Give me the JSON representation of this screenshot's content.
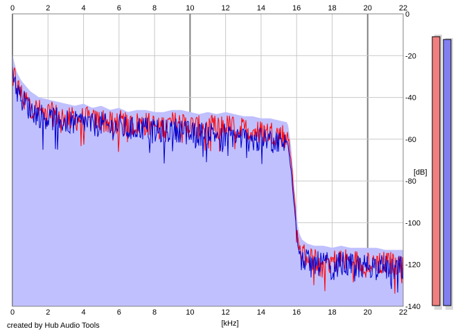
{
  "app": {
    "credit": "created by Hub Audio Tools"
  },
  "colors": {
    "fill": "#c0c0ff",
    "left_channel": "#ff0000",
    "right_channel": "#0000cc",
    "grid_minor": "#c8c8c8",
    "grid_major": "#808080",
    "meter_left": "#f08080",
    "meter_right": "#8080f0"
  },
  "chart_data": {
    "type": "line",
    "title": "",
    "xlabel": "[kHz]",
    "ylabel": "[dB]",
    "xlim": [
      0,
      22
    ],
    "ylim": [
      -140,
      0
    ],
    "x_ticks": [
      "0",
      "2",
      "4",
      "6",
      "8",
      "10",
      "12",
      "14",
      "16",
      "18",
      "20",
      "22"
    ],
    "y_ticks": [
      "0",
      "-20",
      "-40",
      "-60",
      "-80",
      "-100",
      "-120",
      "-140"
    ],
    "grid": true,
    "legend": "none",
    "x": [
      0,
      0.25,
      0.5,
      1,
      1.5,
      2,
      2.5,
      3,
      3.5,
      4,
      4.5,
      5,
      5.5,
      6,
      6.5,
      7,
      7.5,
      8,
      8.5,
      9,
      9.5,
      10,
      10.5,
      11,
      11.5,
      12,
      12.5,
      13,
      13.5,
      14,
      14.5,
      15,
      15.5,
      15.7,
      15.9,
      16.1,
      16.3,
      16.6,
      17,
      17.5,
      18,
      18.5,
      19,
      19.5,
      20,
      20.5,
      21,
      21.5,
      22
    ],
    "series": [
      {
        "values": [
          -26,
          -34,
          -38,
          -43,
          -46,
          -47,
          -48,
          -49,
          -50,
          -49,
          -51,
          -50,
          -52,
          -51,
          -53,
          -52,
          -52,
          -53,
          -53,
          -52,
          -52,
          -53,
          -54,
          -53,
          -54,
          -53,
          -54,
          -55,
          -55,
          -56,
          -56,
          -57,
          -58,
          -70,
          -92,
          -110,
          -114,
          -116,
          -117,
          -117,
          -118,
          -117,
          -118,
          -118,
          -118,
          -118,
          -119,
          -119,
          -119
        ]
      },
      {
        "values": [
          -25,
          -36,
          -40,
          -45,
          -48,
          -49,
          -50,
          -51,
          -52,
          -51,
          -53,
          -52,
          -54,
          -53,
          -55,
          -54,
          -54,
          -56,
          -56,
          -55,
          -55,
          -57,
          -57,
          -56,
          -57,
          -57,
          -58,
          -59,
          -60,
          -60,
          -60,
          -61,
          -62,
          -74,
          -95,
          -112,
          -116,
          -118,
          -119,
          -119,
          -120,
          -119,
          -120,
          -120,
          -120,
          -120,
          -121,
          -121,
          -121
        ]
      }
    ]
  },
  "meters": {
    "left_level": 0.975,
    "right_level": 0.965
  }
}
